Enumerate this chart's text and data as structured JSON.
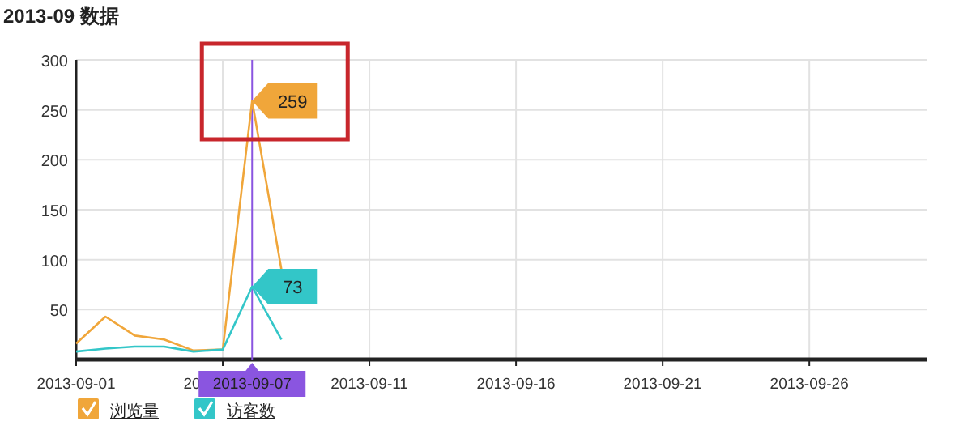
{
  "chart_data": {
    "type": "line",
    "title": "2013-09 数据",
    "x": [
      "2013-09-01",
      "2013-09-02",
      "2013-09-03",
      "2013-09-04",
      "2013-09-05",
      "2013-09-06",
      "2013-09-07",
      "2013-09-08"
    ],
    "series": [
      {
        "name": "浏览量",
        "color": "#f0a63a",
        "values": [
          16,
          43,
          24,
          20,
          9,
          10,
          259,
          90
        ]
      },
      {
        "name": "访客数",
        "color": "#33c6c8",
        "values": [
          8,
          11,
          13,
          13,
          8,
          10,
          73,
          20
        ]
      }
    ],
    "xlim": [
      "2013-09-01",
      "2013-09-30"
    ],
    "xticks": [
      "2013-09-01",
      "2013-09-06",
      "2013-09-11",
      "2013-09-16",
      "2013-09-21",
      "2013-09-26"
    ],
    "ylim": [
      0,
      300
    ],
    "yticks": [
      50,
      100,
      150,
      200,
      250,
      300
    ],
    "ref_lines": [
      {
        "axis": "x",
        "value": "2013-09-07",
        "label": "2013-09-07",
        "color": "#8a55e0"
      }
    ],
    "annotations": [
      {
        "text": "259",
        "x": "2013-09-07",
        "y": 259
      },
      {
        "text": "73",
        "x": "2013-09-07",
        "y": 73
      }
    ],
    "grid": true,
    "legend": "bottom left",
    "marker": "none",
    "line_style": "solid"
  }
}
